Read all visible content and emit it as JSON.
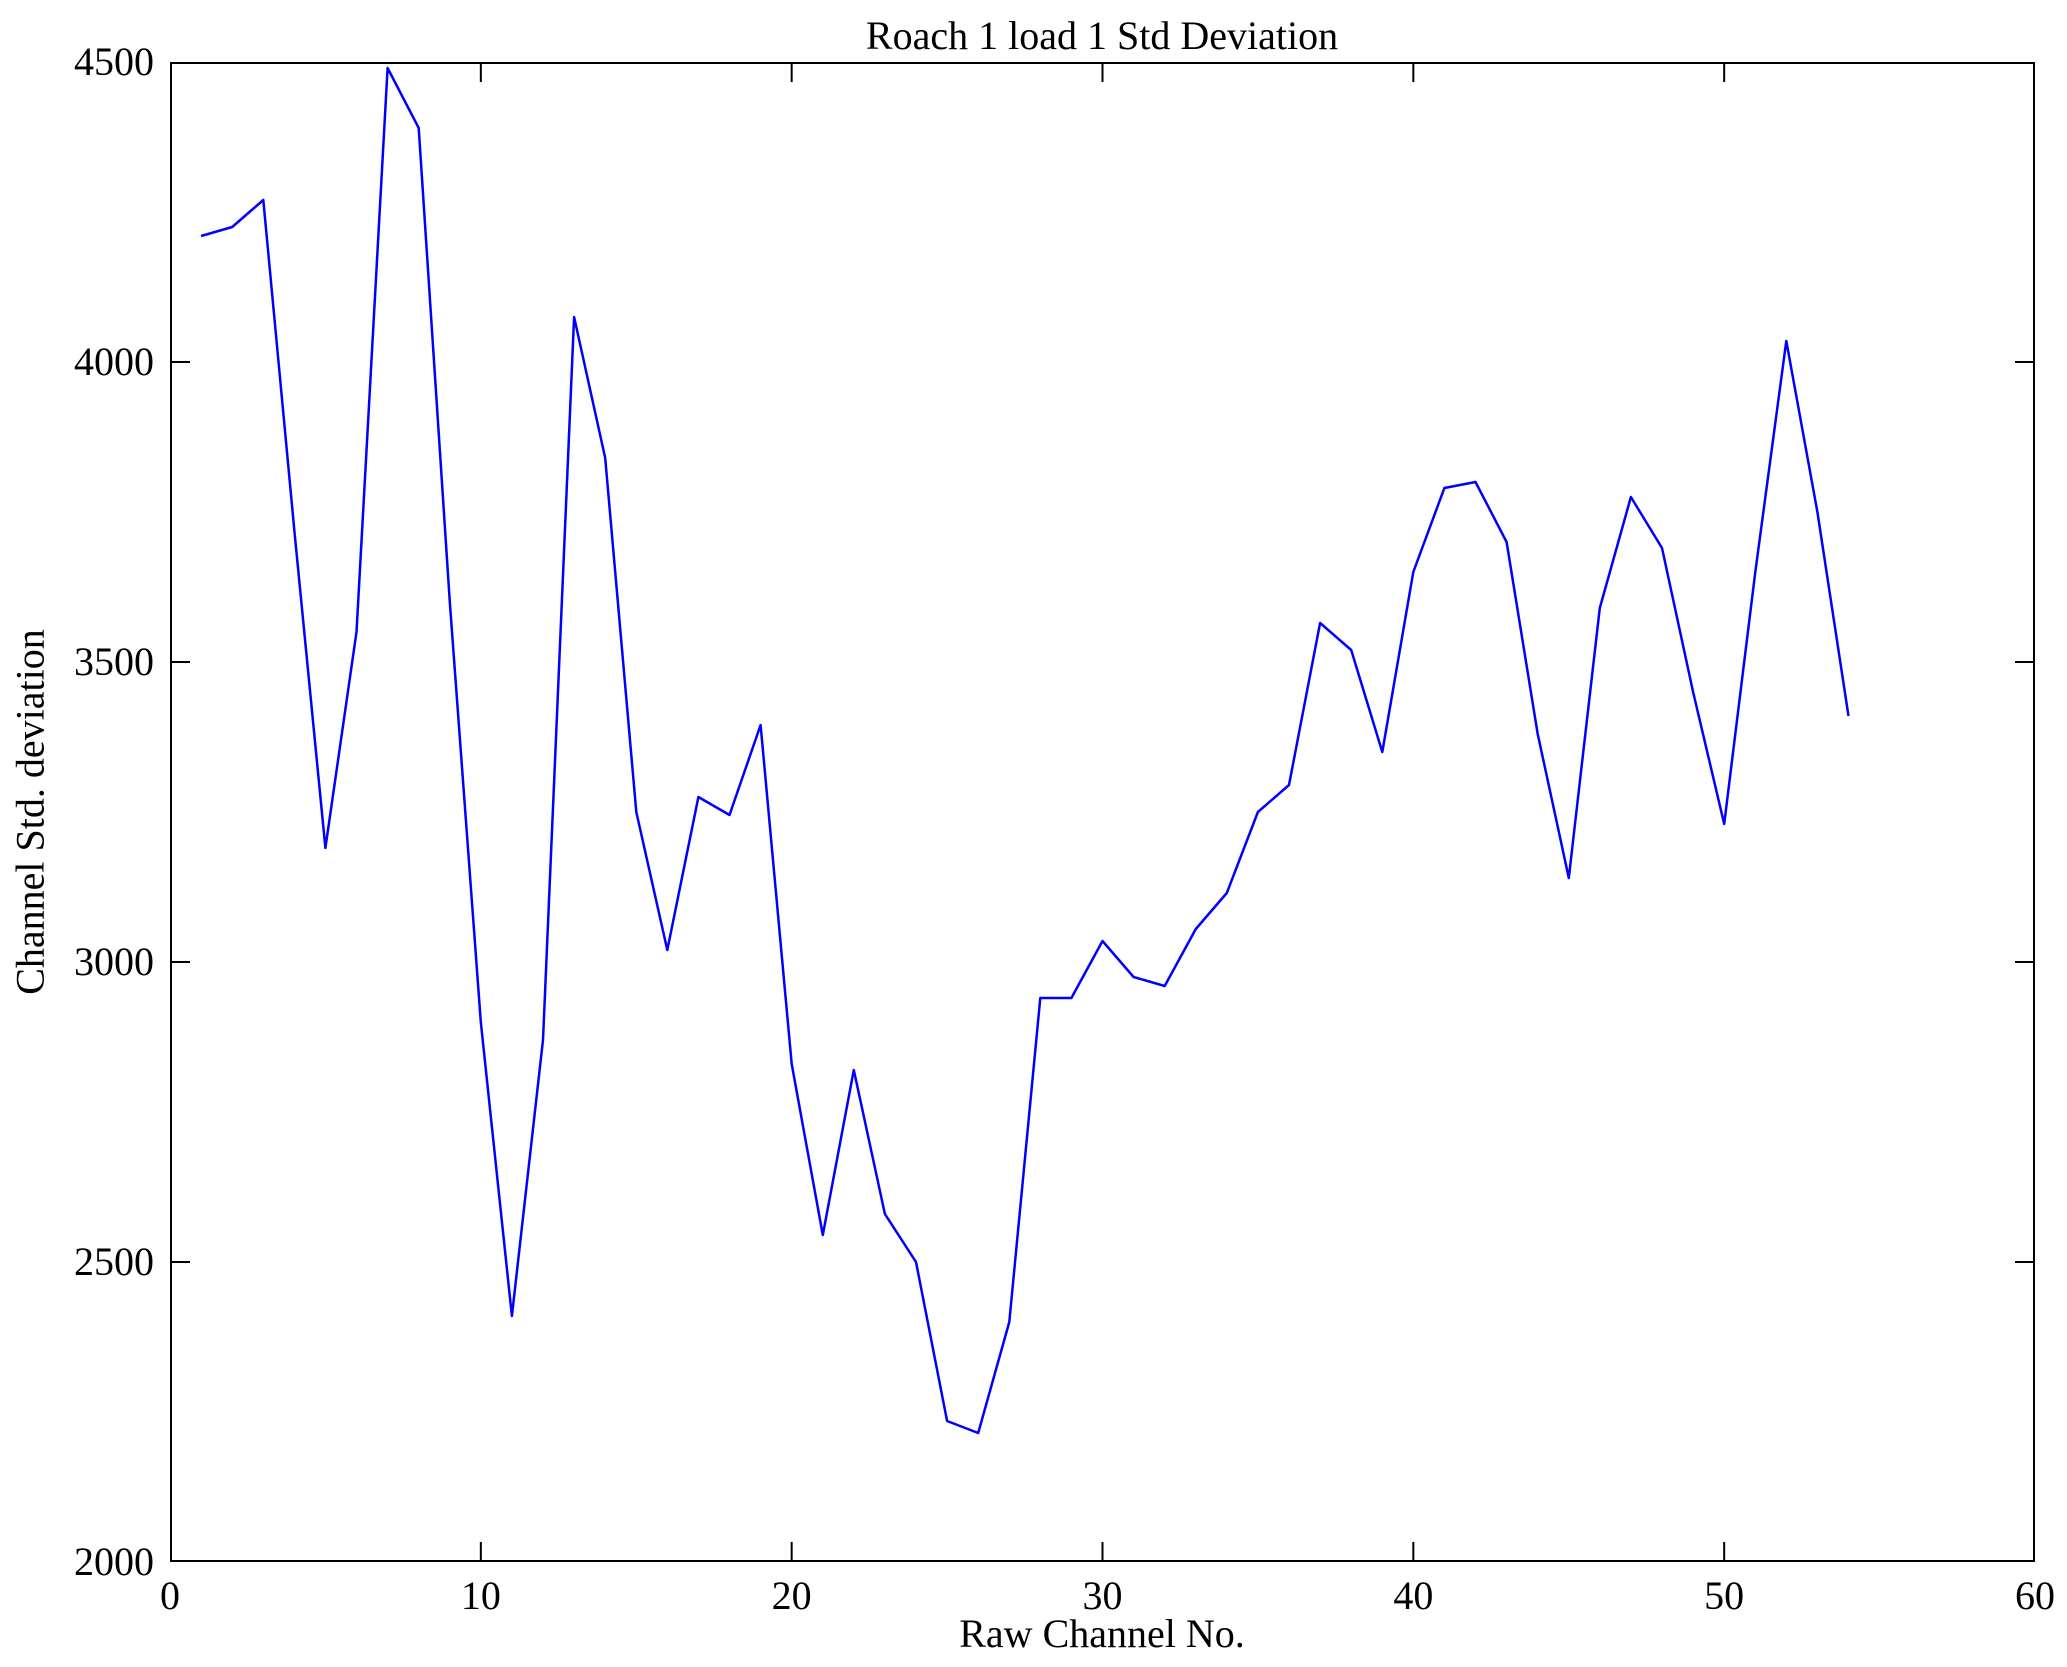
{
  "chart_data": {
    "type": "line",
    "title": "Roach 1 load 1 Std Deviation",
    "xlabel": "Raw Channel No.",
    "ylabel": "Channel Std. deviation",
    "xlim": [
      0,
      60
    ],
    "ylim": [
      2000,
      4500
    ],
    "xticks": [
      0,
      10,
      20,
      30,
      40,
      50,
      60
    ],
    "yticks": [
      2000,
      2500,
      3000,
      3500,
      4000,
      4500
    ],
    "grid": false,
    "legend_position": "none",
    "line_color": "#0000ff",
    "axis_color": "#000000",
    "x": [
      1,
      2,
      3,
      4,
      5,
      6,
      7,
      8,
      9,
      10,
      11,
      12,
      13,
      14,
      15,
      16,
      17,
      18,
      19,
      20,
      21,
      22,
      23,
      24,
      25,
      26,
      27,
      28,
      29,
      30,
      31,
      32,
      33,
      34,
      35,
      36,
      37,
      38,
      39,
      40,
      41,
      42,
      43,
      44,
      45,
      46,
      47,
      48,
      49,
      50,
      51,
      52,
      53,
      54
    ],
    "values": [
      4210,
      4225,
      4270,
      3720,
      3190,
      3550,
      4490,
      4390,
      3600,
      2900,
      2410,
      2870,
      4075,
      3840,
      3250,
      3020,
      3275,
      3245,
      3395,
      2830,
      2545,
      2820,
      2580,
      2500,
      2235,
      2215,
      2400,
      2940,
      2940,
      3035,
      2975,
      2960,
      3055,
      3115,
      3250,
      3295,
      3565,
      3520,
      3350,
      3650,
      3790,
      3800,
      3700,
      3380,
      3140,
      3590,
      3775,
      3690,
      3450,
      3230,
      3650,
      4035,
      3750,
      3410
    ]
  }
}
